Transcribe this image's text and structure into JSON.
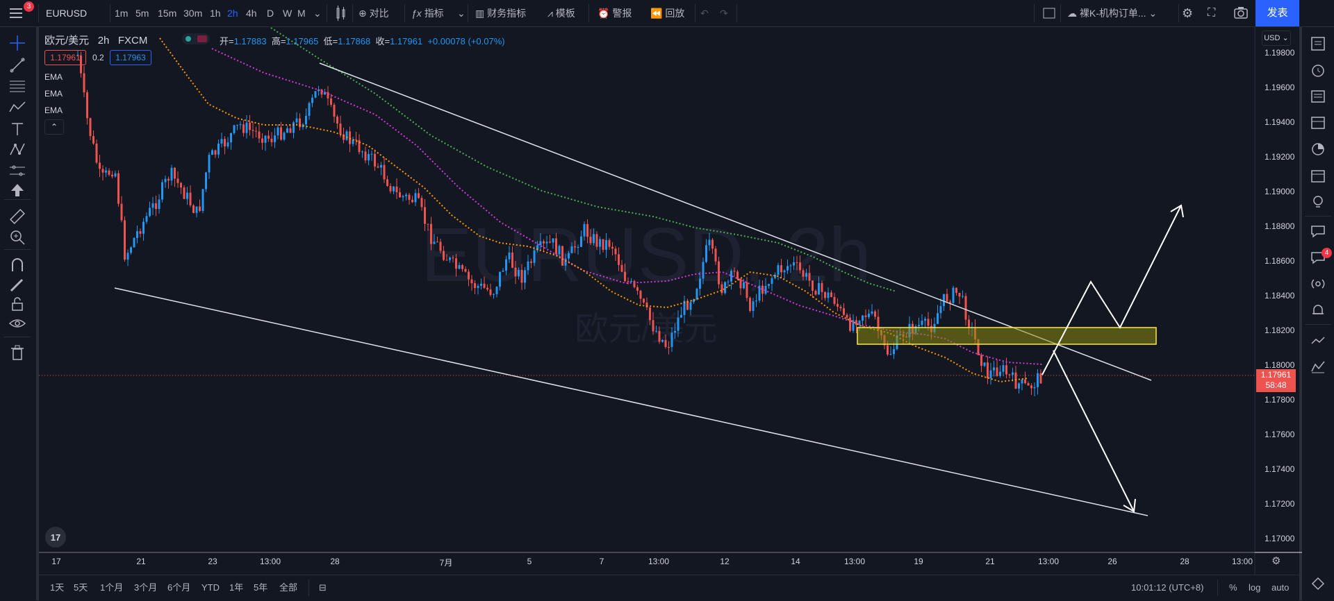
{
  "topbar": {
    "notif_count": "3",
    "symbol": "EURUSD",
    "intervals": [
      "1m",
      "5m",
      "15m",
      "30m",
      "1h",
      "2h",
      "4h",
      "D",
      "W",
      "M"
    ],
    "active_interval": "2h",
    "compare_label": "对比",
    "indicators_label": "指标",
    "financials_label": "财务指标",
    "templates_label": "模板",
    "alert_label": "警报",
    "replay_label": "回放",
    "layout_name": "裸K-机构订单...",
    "publish_label": "发表"
  },
  "legend": {
    "title": "欧元/美元",
    "interval": "2h",
    "source": "FXCM",
    "open_label": "开=",
    "open": "1.17883",
    "high_label": "高=",
    "high": "1.17965",
    "low_label": "低=",
    "low": "1.17868",
    "close_label": "收=",
    "close": "1.17961",
    "change": "+0.00078 (+0.07%)",
    "bid": "1.17961",
    "spread": "0.2",
    "ask": "1.17963",
    "studies": [
      "EMA",
      "EMA",
      "EMA"
    ]
  },
  "watermark": {
    "symbol": "EURUSD, 2h",
    "name": "欧元/美元"
  },
  "price_axis": {
    "currency": "USD",
    "ticks": [
      "1.19800",
      "1.19600",
      "1.19400",
      "1.19200",
      "1.19000",
      "1.18800",
      "1.18600",
      "1.18400",
      "1.18200",
      "1.18000",
      "1.17800",
      "1.17600",
      "1.17400",
      "1.17200",
      "1.17000"
    ],
    "last_price": "1.17961",
    "countdown": "58:48"
  },
  "time_axis": {
    "ticks": [
      "17",
      "21",
      "23",
      "13:00",
      "28",
      "7月",
      "5",
      "7",
      "13:00",
      "12",
      "14",
      "13:00",
      "19",
      "21",
      "13:00",
      "26",
      "28",
      "13:00"
    ]
  },
  "bottombar": {
    "ranges": [
      "1天",
      "5天",
      "1个月",
      "3个月",
      "6个月",
      "YTD",
      "1年",
      "5年",
      "全部"
    ],
    "clock": "10:01:12 (UTC+8)",
    "percent": "%",
    "log": "log",
    "auto": "auto"
  },
  "right_badge": "4",
  "colors": {
    "background": "#131722",
    "up": "#2196f3",
    "down": "#ef5350",
    "ema_fast": "#ff9800",
    "ema_mid": "#d63adf",
    "ema_slow": "#4caf50",
    "accent": "#2962ff",
    "zone": "#b5b50a"
  }
}
